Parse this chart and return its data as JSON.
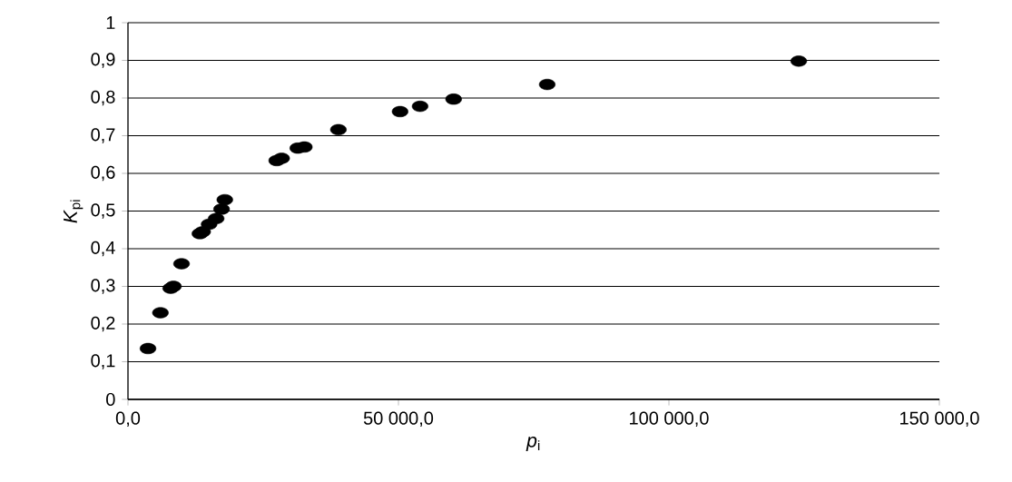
{
  "chart_data": {
    "type": "scatter",
    "xlabel": "*p*$_{i}$",
    "ylabel": "*K*$_{pi}$",
    "x": [
      3700,
      6000,
      7900,
      8400,
      9900,
      13300,
      13800,
      15000,
      16300,
      17300,
      17900,
      27500,
      28400,
      31400,
      32600,
      38900,
      50300,
      54000,
      60200,
      77500,
      124000
    ],
    "values": [
      0.135,
      0.23,
      0.295,
      0.3,
      0.36,
      0.44,
      0.445,
      0.465,
      0.48,
      0.505,
      0.53,
      0.634,
      0.64,
      0.667,
      0.67,
      0.716,
      0.764,
      0.778,
      0.797,
      0.836,
      0.898
    ],
    "color": "#000000",
    "marker": "circle",
    "grid": "y",
    "xlim": [
      0,
      150000
    ],
    "ylim": [
      0,
      1
    ],
    "xticks": [
      {
        "value": 0,
        "label": "0,0"
      },
      {
        "value": 50000,
        "label": "50 000,0"
      },
      {
        "value": 100000,
        "label": "100 000,0"
      },
      {
        "value": 150000,
        "label": "150 000,0"
      }
    ],
    "yticks": [
      0,
      {
        "value": 0.1,
        "label": "0,1"
      },
      {
        "value": 0.2,
        "label": "0,2"
      },
      {
        "value": 0.3,
        "label": "0,3"
      },
      {
        "value": 0.4,
        "label": "0,4"
      },
      {
        "value": 0.5,
        "label": "0,5"
      },
      {
        "value": 0.6,
        "label": "0,6"
      },
      {
        "value": 0.7,
        "label": "0,7"
      },
      {
        "value": 0.8,
        "label": "0,8"
      },
      {
        "value": 0.9,
        "label": "0,9"
      },
      1
    ]
  }
}
